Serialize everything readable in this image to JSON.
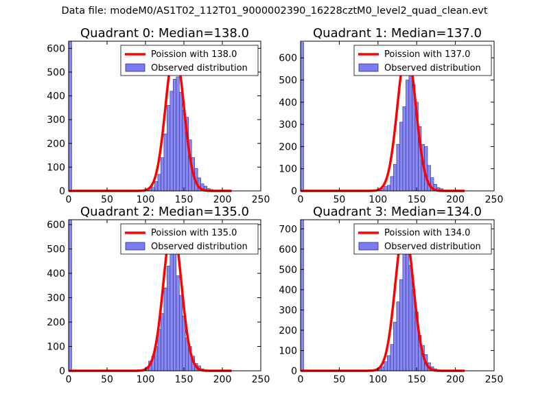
{
  "suptitle": "Data file: modeM0/AS1T02_112T01_9000002390_16228cztM0_level2_quad_clean.evt",
  "colors": {
    "bars": "#7b7bf2",
    "bar_edge": "#2e2e8a",
    "curve": "#ff0000"
  },
  "chart_data": [
    {
      "type": "bar",
      "title": "Quadrant 0: Median=138.0",
      "median": 138.0,
      "xlim": [
        0,
        250
      ],
      "ylim": [
        0,
        630
      ],
      "xticks": [
        "0",
        "50",
        "100",
        "150",
        "200",
        "250"
      ],
      "yticks": [
        "0",
        "100",
        "200",
        "300",
        "400",
        "500",
        "600"
      ],
      "legend": {
        "position": "top-right",
        "entries": [
          "Poission with 138.0",
          "Observed distribution"
        ]
      },
      "bin_width": 4,
      "bins": [
        {
          "x": 0,
          "count": 630
        },
        {
          "x": 96,
          "count": 2
        },
        {
          "x": 100,
          "count": 6
        },
        {
          "x": 104,
          "count": 10
        },
        {
          "x": 108,
          "count": 15
        },
        {
          "x": 112,
          "count": 40
        },
        {
          "x": 116,
          "count": 70
        },
        {
          "x": 120,
          "count": 140
        },
        {
          "x": 124,
          "count": 240
        },
        {
          "x": 128,
          "count": 360
        },
        {
          "x": 132,
          "count": 420
        },
        {
          "x": 136,
          "count": 470
        },
        {
          "x": 140,
          "count": 480
        },
        {
          "x": 144,
          "count": 415
        },
        {
          "x": 148,
          "count": 340
        },
        {
          "x": 152,
          "count": 310
        },
        {
          "x": 156,
          "count": 215
        },
        {
          "x": 160,
          "count": 140
        },
        {
          "x": 164,
          "count": 95
        },
        {
          "x": 168,
          "count": 55
        },
        {
          "x": 172,
          "count": 30
        },
        {
          "x": 176,
          "count": 20
        },
        {
          "x": 180,
          "count": 10
        },
        {
          "x": 184,
          "count": 6
        },
        {
          "x": 188,
          "count": 3
        }
      ],
      "curve_peak": 598
    },
    {
      "type": "bar",
      "title": "Quadrant 1: Median=137.0",
      "median": 137.0,
      "xlim": [
        0,
        250
      ],
      "ylim": [
        0,
        675
      ],
      "xticks": [
        "0",
        "50",
        "100",
        "150",
        "200",
        "250"
      ],
      "yticks": [
        "0",
        "100",
        "200",
        "300",
        "400",
        "500",
        "600"
      ],
      "legend": {
        "position": "top-right",
        "entries": [
          "Poission with 137.0",
          "Observed distribution"
        ]
      },
      "bin_width": 4,
      "bins": [
        {
          "x": 0,
          "count": 670
        },
        {
          "x": 96,
          "count": 5
        },
        {
          "x": 100,
          "count": 5
        },
        {
          "x": 104,
          "count": 10
        },
        {
          "x": 108,
          "count": 20
        },
        {
          "x": 112,
          "count": 25
        },
        {
          "x": 116,
          "count": 65
        },
        {
          "x": 120,
          "count": 120
        },
        {
          "x": 124,
          "count": 210
        },
        {
          "x": 128,
          "count": 310
        },
        {
          "x": 132,
          "count": 380
        },
        {
          "x": 136,
          "count": 500
        },
        {
          "x": 140,
          "count": 580
        },
        {
          "x": 144,
          "count": 480
        },
        {
          "x": 148,
          "count": 400
        },
        {
          "x": 152,
          "count": 290
        },
        {
          "x": 156,
          "count": 210
        },
        {
          "x": 160,
          "count": 200
        },
        {
          "x": 164,
          "count": 115
        },
        {
          "x": 168,
          "count": 60
        },
        {
          "x": 172,
          "count": 30
        },
        {
          "x": 176,
          "count": 15
        },
        {
          "x": 180,
          "count": 10
        },
        {
          "x": 184,
          "count": 4
        },
        {
          "x": 188,
          "count": 3
        }
      ],
      "curve_peak": 643
    },
    {
      "type": "bar",
      "title": "Quadrant 2: Median=135.0",
      "median": 135.0,
      "xlim": [
        0,
        250
      ],
      "ylim": [
        0,
        620
      ],
      "xticks": [
        "0",
        "50",
        "100",
        "150",
        "200",
        "250"
      ],
      "yticks": [
        "0",
        "100",
        "200",
        "300",
        "400",
        "500",
        "600"
      ],
      "legend": {
        "position": "top-right",
        "entries": [
          "Poission with 135.0",
          "Observed distribution"
        ]
      },
      "bin_width": 4,
      "bins": [
        {
          "x": 0,
          "count": 620
        },
        {
          "x": 96,
          "count": 5
        },
        {
          "x": 100,
          "count": 15
        },
        {
          "x": 104,
          "count": 40
        },
        {
          "x": 108,
          "count": 60
        },
        {
          "x": 112,
          "count": 100
        },
        {
          "x": 116,
          "count": 170
        },
        {
          "x": 120,
          "count": 235
        },
        {
          "x": 124,
          "count": 340
        },
        {
          "x": 128,
          "count": 430
        },
        {
          "x": 132,
          "count": 520
        },
        {
          "x": 136,
          "count": 560
        },
        {
          "x": 140,
          "count": 390
        },
        {
          "x": 144,
          "count": 310
        },
        {
          "x": 148,
          "count": 225
        },
        {
          "x": 152,
          "count": 135
        },
        {
          "x": 156,
          "count": 100
        },
        {
          "x": 160,
          "count": 60
        },
        {
          "x": 164,
          "count": 30
        },
        {
          "x": 168,
          "count": 20
        },
        {
          "x": 172,
          "count": 8
        },
        {
          "x": 176,
          "count": 4
        },
        {
          "x": 180,
          "count": 2
        },
        {
          "x": 184,
          "count": 1
        }
      ],
      "curve_peak": 600
    },
    {
      "type": "bar",
      "title": "Quadrant 3: Median=134.0",
      "median": 134.0,
      "xlim": [
        0,
        250
      ],
      "ylim": [
        0,
        745
      ],
      "xticks": [
        "0",
        "50",
        "100",
        "150",
        "200",
        "250"
      ],
      "yticks": [
        "0",
        "100",
        "200",
        "300",
        "400",
        "500",
        "600",
        "700"
      ],
      "legend": {
        "position": "top-right",
        "entries": [
          "Poission with 134.0",
          "Observed distribution"
        ]
      },
      "bin_width": 4,
      "bins": [
        {
          "x": 0,
          "count": 745
        },
        {
          "x": 96,
          "count": 5
        },
        {
          "x": 100,
          "count": 10
        },
        {
          "x": 104,
          "count": 20
        },
        {
          "x": 108,
          "count": 45
        },
        {
          "x": 112,
          "count": 75
        },
        {
          "x": 116,
          "count": 130
        },
        {
          "x": 120,
          "count": 240
        },
        {
          "x": 124,
          "count": 340
        },
        {
          "x": 128,
          "count": 450
        },
        {
          "x": 132,
          "count": 620
        },
        {
          "x": 136,
          "count": 650
        },
        {
          "x": 140,
          "count": 520
        },
        {
          "x": 144,
          "count": 400
        },
        {
          "x": 148,
          "count": 290
        },
        {
          "x": 152,
          "count": 175
        },
        {
          "x": 156,
          "count": 125
        },
        {
          "x": 160,
          "count": 80
        },
        {
          "x": 164,
          "count": 40
        },
        {
          "x": 168,
          "count": 20
        },
        {
          "x": 172,
          "count": 10
        },
        {
          "x": 176,
          "count": 5
        },
        {
          "x": 180,
          "count": 3
        },
        {
          "x": 184,
          "count": 2
        }
      ],
      "curve_peak": 710
    }
  ]
}
